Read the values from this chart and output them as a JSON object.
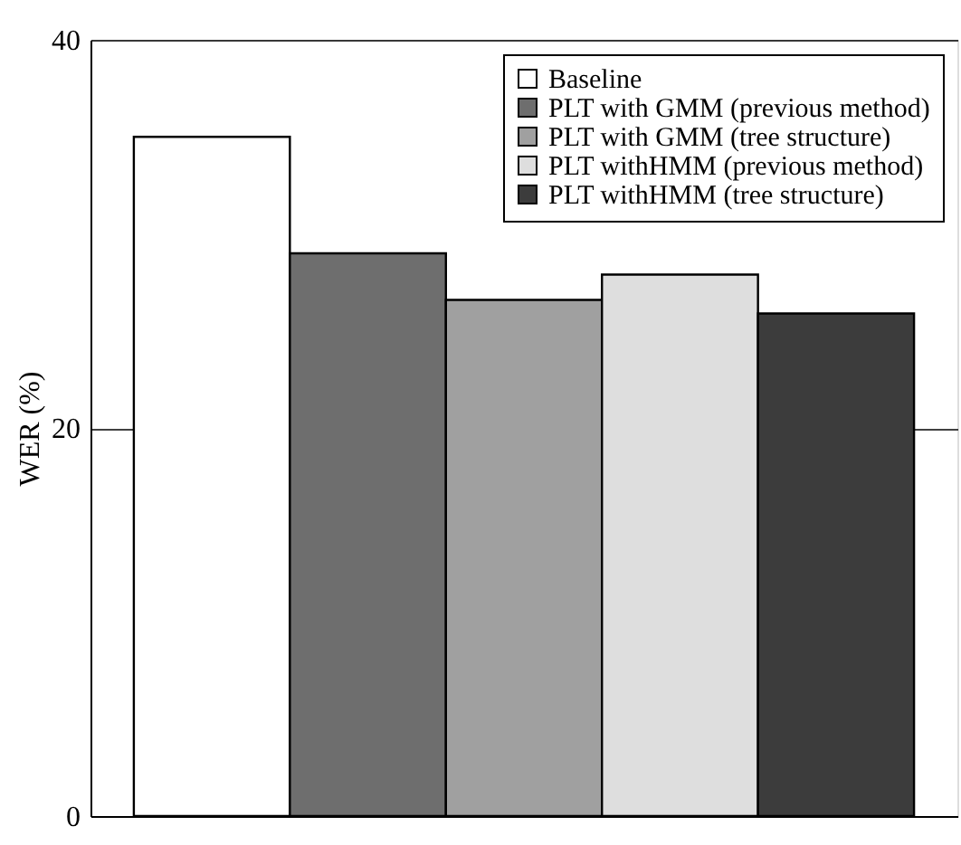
{
  "chart_data": {
    "type": "bar",
    "ylabel": "WER (%)",
    "categories": [
      null
    ],
    "series": [
      {
        "name": "Baseline",
        "color": "#ffffff",
        "values": [
          35
        ]
      },
      {
        "name": "PLT with GMM (previous method)",
        "color": "#6e6e6e",
        "values": [
          29
        ]
      },
      {
        "name": "PLT with GMM (tree structure)",
        "color": "#a0a0a0",
        "values": [
          26.6
        ]
      },
      {
        "name": "PLT withHMM (previous method)",
        "color": "#dedede",
        "values": [
          27.9
        ]
      },
      {
        "name": "PLT withHMM (tree structure)",
        "color": "#3c3c3c",
        "values": [
          25.9
        ]
      }
    ],
    "ylim": [
      0,
      40
    ],
    "yticks": [
      0,
      20,
      40
    ],
    "grid": "y",
    "legend": "top right"
  }
}
